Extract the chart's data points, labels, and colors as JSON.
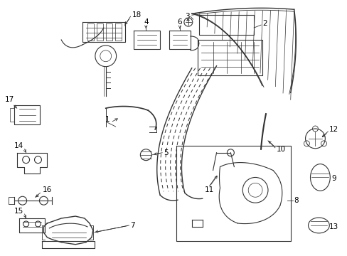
{
  "background_color": "#ffffff",
  "fig_width": 4.89,
  "fig_height": 3.6,
  "dpi": 100,
  "label_fontsize": 7.5,
  "line_color": "#333333",
  "line_width": 0.8
}
